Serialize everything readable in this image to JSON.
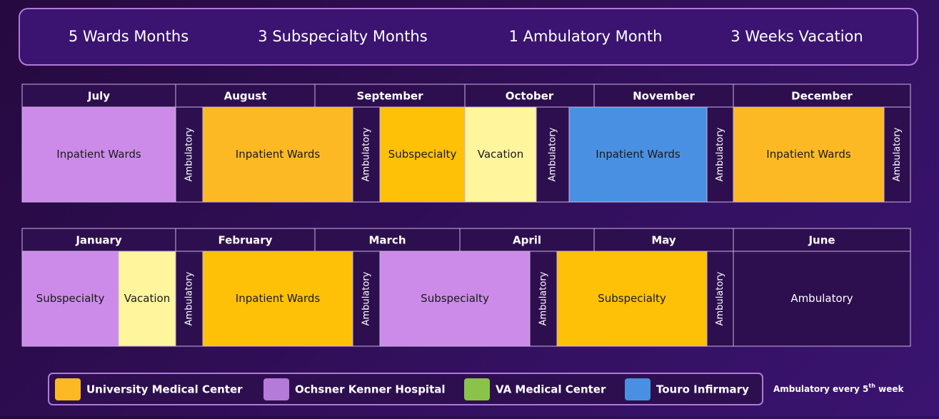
{
  "summary": [
    "5 Wards Months",
    "3 Subspecialty Months",
    "1 Ambulatory Month",
    "3 Weeks Vacation"
  ],
  "rows": [
    {
      "months": [
        "July",
        "August",
        "September",
        "October",
        "November",
        "December"
      ],
      "blocks": [
        {
          "label": "Inpatient Wards",
          "color": "#cc8be9"
        },
        {
          "label": "Ambulatory",
          "color": "#2d0f4f"
        },
        {
          "label": "Inpatient Wards",
          "color": "#fdb924"
        },
        {
          "label": "Ambulatory",
          "color": "#2d0f4f"
        },
        {
          "label": "Subspecialty",
          "color": "#ffc107"
        },
        {
          "label": "Vacation",
          "color": "#fff59d"
        },
        {
          "label": "Ambulatory",
          "color": "#2d0f4f"
        },
        {
          "label": "Inpatient  Wards",
          "color": "#4a90e2"
        },
        {
          "label": "Ambulatory",
          "color": "#2d0f4f"
        },
        {
          "label": "Inpatient Wards",
          "color": "#fdb924"
        },
        {
          "label": "Ambulatory",
          "color": "#2d0f4f"
        }
      ]
    },
    {
      "months": [
        "January",
        "February",
        "March",
        "April",
        "May",
        "June"
      ],
      "blocks": [
        {
          "label": "Subspecialty",
          "color": "#cc8be9"
        },
        {
          "label": "Vacation",
          "color": "#fff59d"
        },
        {
          "label": "Ambulatory",
          "color": "#2d0f4f"
        },
        {
          "label": "Inpatient Wards",
          "color": "#ffc107"
        },
        {
          "label": "Ambulatory",
          "color": "#2d0f4f"
        },
        {
          "label": "Subspecialty",
          "color": "#cc8be9"
        },
        {
          "label": "Ambulatory",
          "color": "#2d0f4f"
        },
        {
          "label": "Subspecialty",
          "color": "#ffc107"
        },
        {
          "label": "Ambulatory",
          "color": "#2d0f4f"
        },
        {
          "label": "Ambulatory",
          "color": "#2d0f4f"
        }
      ]
    }
  ],
  "legend": [
    {
      "name": "University Medical Center",
      "color": "#fdb924"
    },
    {
      "name": "Ochsner Kenner Hospital",
      "color": "#b57bd8"
    },
    {
      "name": "VA Medical Center",
      "color": "#8bc34a"
    },
    {
      "name": "Touro Infirmary",
      "color": "#4a90e2"
    }
  ],
  "note": {
    "before": "Ambulatory every 5",
    "sup": "th",
    "after": " week"
  }
}
